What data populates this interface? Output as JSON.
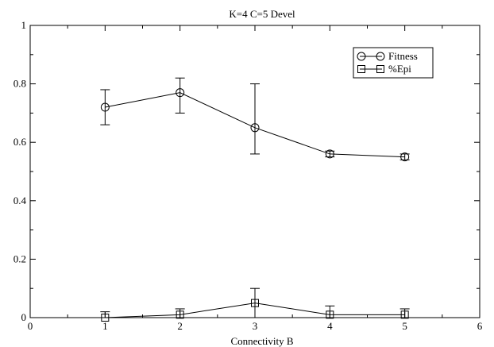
{
  "chart_data": {
    "type": "line",
    "title": "K=4 C=5 Devel",
    "xlabel": "Connectivity B",
    "ylabel": "",
    "xlim": [
      0,
      6
    ],
    "ylim": [
      0,
      1
    ],
    "x_ticks": [
      "0",
      "1",
      "2",
      "3",
      "4",
      "5",
      "6"
    ],
    "y_ticks": [
      "0",
      "0.2",
      "0.4",
      "0.6",
      "0.8",
      "1"
    ],
    "grid": false,
    "legend_position": "top-right",
    "series": [
      {
        "name": "Fitness",
        "marker": "circle",
        "x": [
          1,
          2,
          3,
          4,
          5
        ],
        "y": [
          0.72,
          0.77,
          0.65,
          0.56,
          0.55
        ],
        "err_low": [
          0.66,
          0.7,
          0.56,
          0.55,
          0.54
        ],
        "err_high": [
          0.78,
          0.82,
          0.8,
          0.57,
          0.56
        ]
      },
      {
        "name": "%Epi",
        "marker": "square",
        "x": [
          1,
          2,
          3,
          4,
          5
        ],
        "y": [
          0.0,
          0.01,
          0.05,
          0.01,
          0.01
        ],
        "err_low": [
          0.0,
          0.0,
          0.0,
          0.0,
          0.0
        ],
        "err_high": [
          0.02,
          0.03,
          0.1,
          0.04,
          0.03
        ]
      }
    ]
  }
}
